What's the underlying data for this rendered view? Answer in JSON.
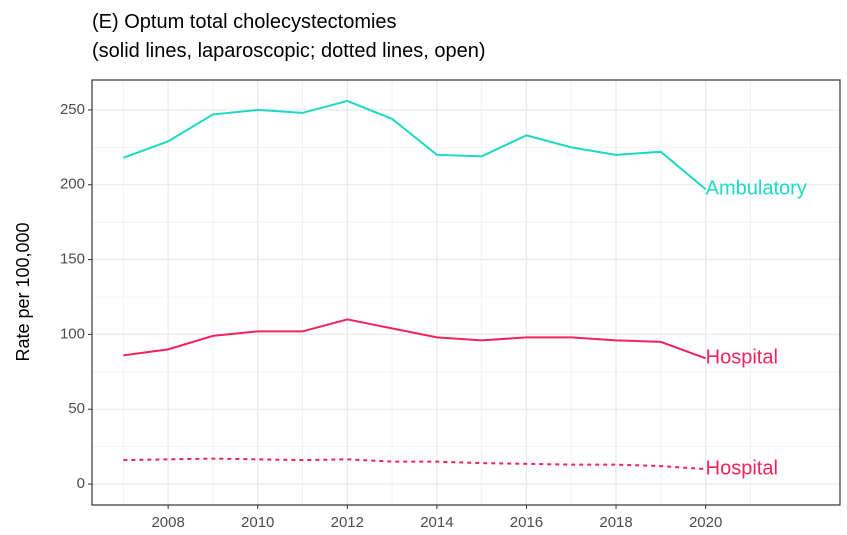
{
  "chart_data": {
    "type": "line",
    "title": [
      "(E) Optum total cholecystectomies",
      "(solid lines, laparoscopic; dotted lines, open)"
    ],
    "y_label": "Rate per 100,000",
    "x": [
      2007,
      2008,
      2009,
      2010,
      2011,
      2012,
      2013,
      2014,
      2015,
      2016,
      2017,
      2018,
      2019,
      2020
    ],
    "series": [
      {
        "name": "Ambulatory",
        "color": "#1dd9c4",
        "dash": false,
        "values": [
          218,
          229,
          247,
          250,
          248,
          256,
          244,
          220,
          219,
          233,
          225,
          220,
          222,
          197
        ]
      },
      {
        "name": "Hospital",
        "color": "#f0245a",
        "dash": false,
        "values": [
          86,
          90,
          99,
          102,
          102,
          110,
          104,
          98,
          96,
          98,
          98,
          96,
          95,
          84
        ]
      },
      {
        "name": "Hospital",
        "color": "#f0245a",
        "dash": true,
        "values": [
          16,
          16.5,
          17,
          16.5,
          16,
          16.5,
          15,
          15,
          14,
          13.5,
          13,
          13,
          12,
          10
        ]
      }
    ],
    "xlim": [
      2006.3,
      2023.0
    ],
    "xticks": [
      2008,
      2010,
      2012,
      2014,
      2016,
      2018,
      2020
    ],
    "ylim": [
      -14,
      270
    ],
    "yticks": [
      0,
      50,
      100,
      150,
      200,
      250
    ],
    "grid": true
  }
}
